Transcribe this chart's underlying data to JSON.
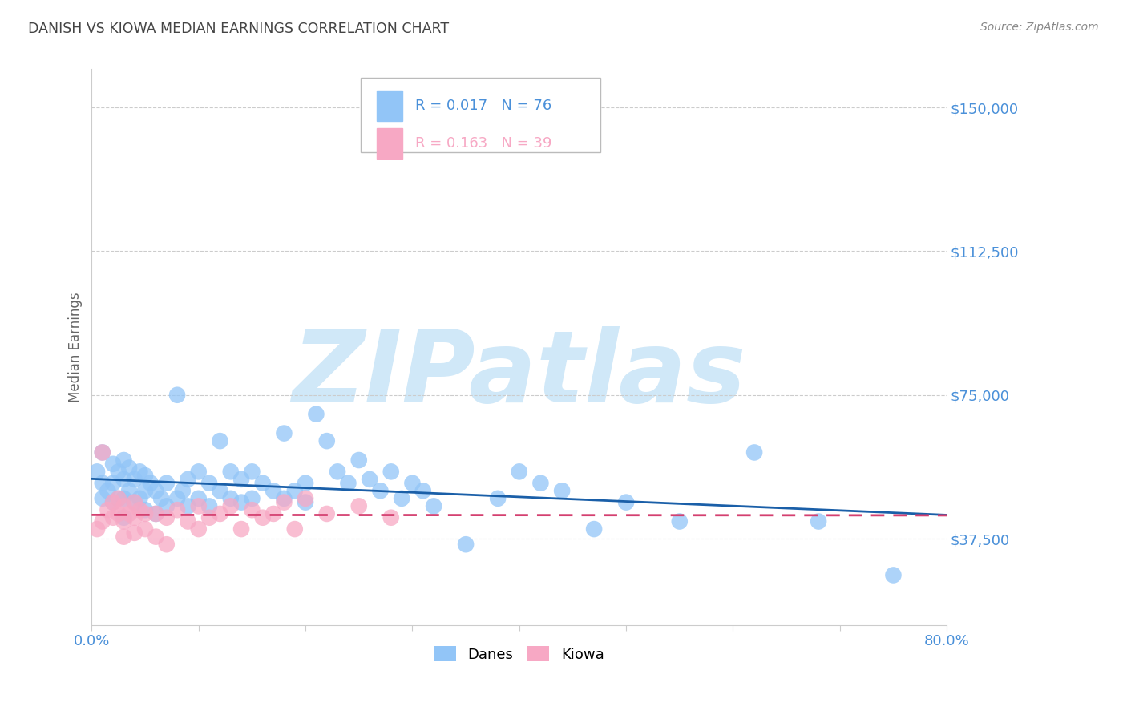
{
  "title": "DANISH VS KIOWA MEDIAN EARNINGS CORRELATION CHART",
  "source": "Source: ZipAtlas.com",
  "ylabel": "Median Earnings",
  "xlabel": "",
  "xlim": [
    0.0,
    0.8
  ],
  "ylim": [
    15000,
    160000
  ],
  "yticks": [
    37500,
    75000,
    112500,
    150000
  ],
  "ytick_labels": [
    "$37,500",
    "$75,000",
    "$112,500",
    "$150,000"
  ],
  "xticks": [
    0.0,
    0.1,
    0.2,
    0.3,
    0.4,
    0.5,
    0.6,
    0.7,
    0.8
  ],
  "xtick_labels": [
    "0.0%",
    "",
    "",
    "",
    "",
    "",
    "",
    "",
    "80.0%"
  ],
  "danes_color": "#92C5F7",
  "kiowa_color": "#F7A8C4",
  "danes_line_color": "#1A5FA8",
  "kiowa_line_color": "#D44070",
  "danes_R": 0.017,
  "danes_N": 76,
  "kiowa_R": 0.163,
  "kiowa_N": 39,
  "legend_label_danes": "Danes",
  "legend_label_kiowa": "Kiowa",
  "danes_x": [
    0.005,
    0.01,
    0.01,
    0.01,
    0.015,
    0.02,
    0.02,
    0.02,
    0.025,
    0.025,
    0.03,
    0.03,
    0.03,
    0.03,
    0.035,
    0.035,
    0.04,
    0.04,
    0.045,
    0.045,
    0.05,
    0.05,
    0.05,
    0.055,
    0.06,
    0.06,
    0.065,
    0.07,
    0.07,
    0.08,
    0.08,
    0.085,
    0.09,
    0.09,
    0.1,
    0.1,
    0.11,
    0.11,
    0.12,
    0.12,
    0.13,
    0.13,
    0.14,
    0.14,
    0.15,
    0.15,
    0.16,
    0.17,
    0.18,
    0.18,
    0.19,
    0.2,
    0.2,
    0.21,
    0.22,
    0.23,
    0.24,
    0.25,
    0.26,
    0.27,
    0.28,
    0.29,
    0.3,
    0.31,
    0.32,
    0.35,
    0.38,
    0.4,
    0.42,
    0.44,
    0.47,
    0.5,
    0.55,
    0.62,
    0.68,
    0.75
  ],
  "danes_y": [
    55000,
    60000,
    52000,
    48000,
    50000,
    57000,
    52000,
    47000,
    55000,
    48000,
    58000,
    53000,
    48000,
    43000,
    56000,
    50000,
    53000,
    47000,
    55000,
    48000,
    54000,
    50000,
    45000,
    52000,
    50000,
    44000,
    48000,
    52000,
    46000,
    75000,
    48000,
    50000,
    53000,
    46000,
    55000,
    48000,
    52000,
    46000,
    63000,
    50000,
    55000,
    48000,
    53000,
    47000,
    55000,
    48000,
    52000,
    50000,
    65000,
    48000,
    50000,
    52000,
    47000,
    70000,
    63000,
    55000,
    52000,
    58000,
    53000,
    50000,
    55000,
    48000,
    52000,
    50000,
    46000,
    36000,
    48000,
    55000,
    52000,
    50000,
    40000,
    47000,
    42000,
    60000,
    42000,
    28000
  ],
  "kiowa_x": [
    0.005,
    0.01,
    0.01,
    0.015,
    0.02,
    0.02,
    0.025,
    0.025,
    0.03,
    0.03,
    0.03,
    0.035,
    0.04,
    0.04,
    0.04,
    0.045,
    0.05,
    0.05,
    0.06,
    0.06,
    0.07,
    0.07,
    0.08,
    0.09,
    0.1,
    0.1,
    0.11,
    0.12,
    0.13,
    0.14,
    0.15,
    0.16,
    0.17,
    0.18,
    0.19,
    0.2,
    0.22,
    0.25,
    0.28
  ],
  "kiowa_y": [
    40000,
    60000,
    42000,
    45000,
    47000,
    43000,
    48000,
    44000,
    46000,
    42000,
    38000,
    44000,
    47000,
    43000,
    39000,
    45000,
    44000,
    40000,
    44000,
    38000,
    43000,
    36000,
    45000,
    42000,
    46000,
    40000,
    43000,
    44000,
    46000,
    40000,
    45000,
    43000,
    44000,
    47000,
    40000,
    48000,
    44000,
    46000,
    43000
  ],
  "background_color": "#FFFFFF",
  "grid_color": "#CCCCCC",
  "tick_color": "#4A90D9",
  "title_color": "#444444",
  "watermark_text": "ZIPatlas",
  "watermark_color": "#D0E8F8",
  "source_color": "#888888"
}
